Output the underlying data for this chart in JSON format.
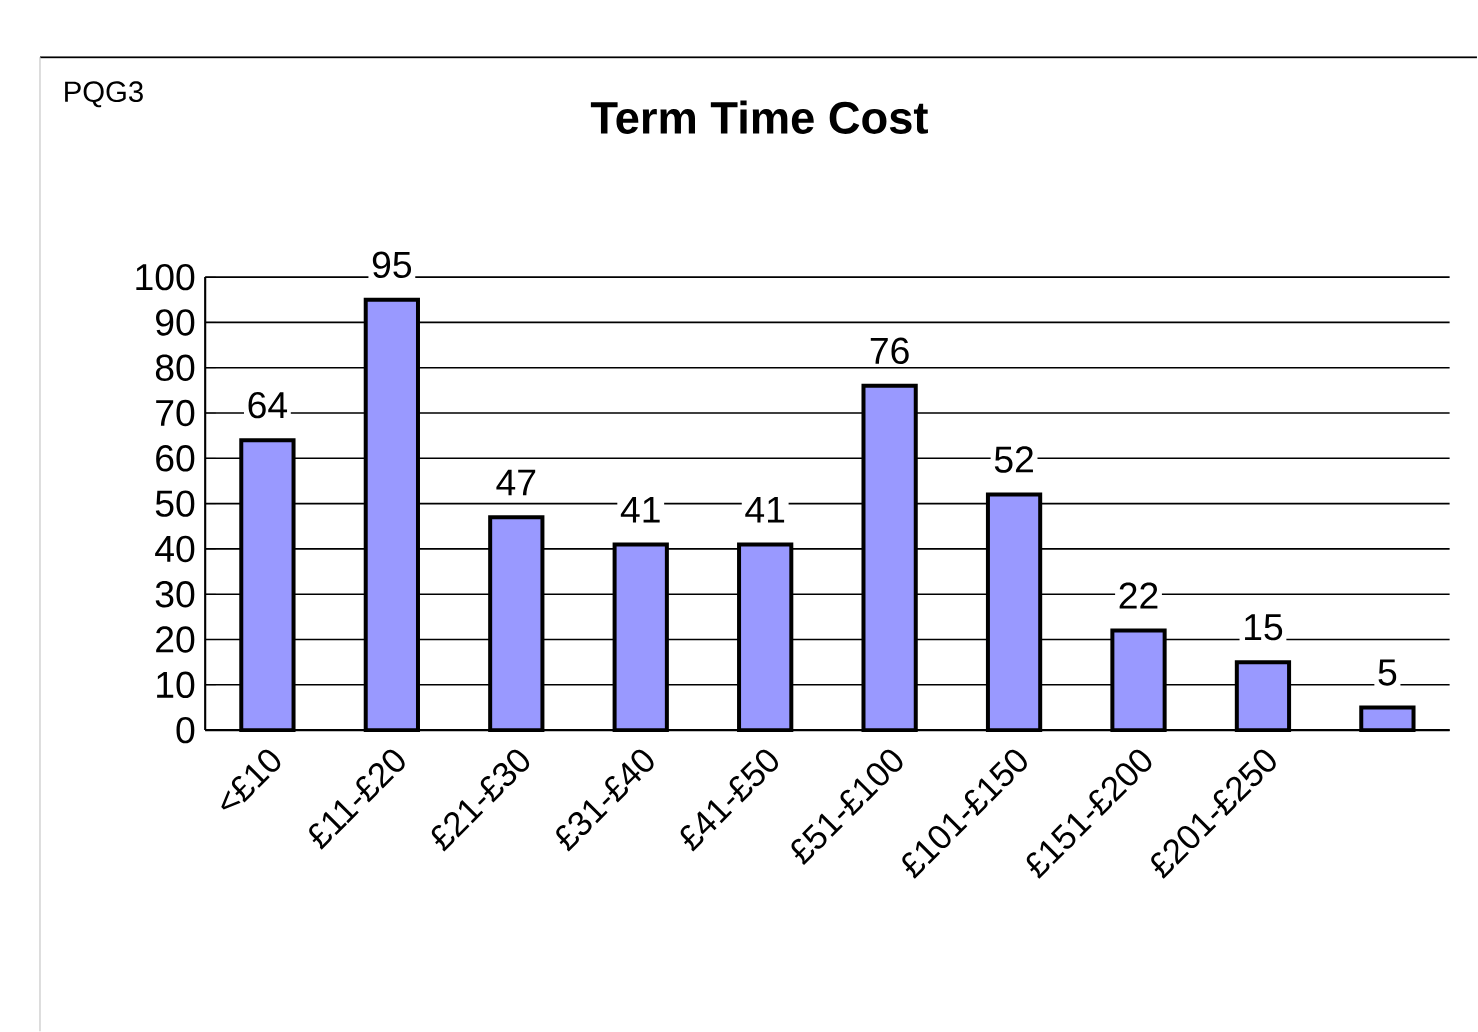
{
  "chart_data": {
    "type": "bar",
    "title": "Term Time Cost",
    "annotations": [
      "PQG3"
    ],
    "categories": [
      "<£10",
      "£11-£20",
      "£21-£30",
      "£31-£40",
      "£41-£50",
      "£51-£100",
      "£101-£150",
      "£151-£200",
      "£201-£250",
      null
    ],
    "values": [
      64,
      95,
      47,
      41,
      41,
      76,
      52,
      22,
      15,
      5
    ],
    "color": "#9999ff",
    "data_labels": true,
    "grid": "y",
    "ylim": [
      0,
      100
    ],
    "yticks": [
      0,
      10,
      20,
      30,
      40,
      50,
      60,
      70,
      80,
      90,
      100
    ]
  }
}
